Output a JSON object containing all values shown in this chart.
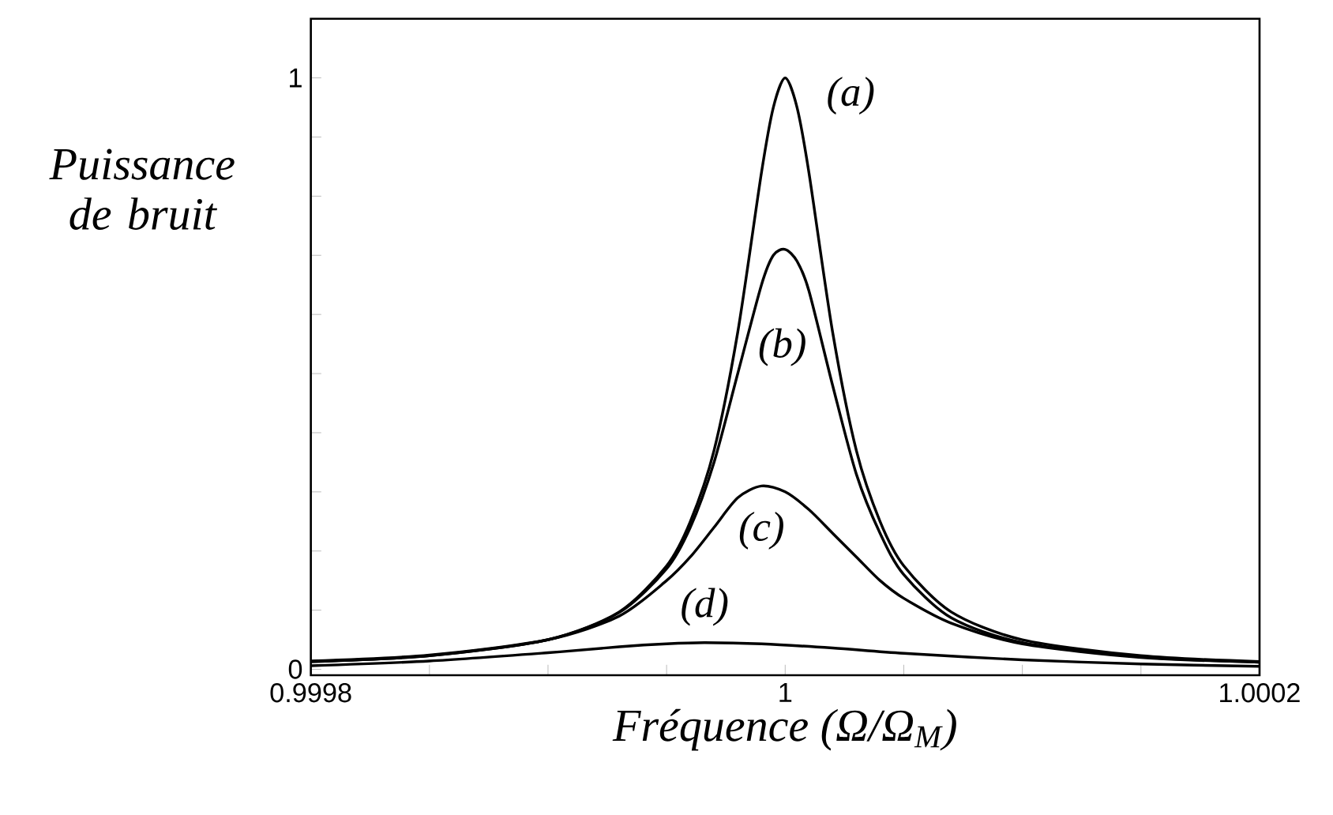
{
  "chart_data": {
    "type": "line",
    "xlabel": "Fréquence (Ω/Ω$_{M}$)",
    "ylabel": "Puissance de bruit",
    "xlim": [
      0.9998,
      1.0002
    ],
    "ylim": [
      -0.01,
      1.1
    ],
    "xticks": [
      0.9998,
      {
        "value": 0.99985,
        "label": null
      },
      {
        "value": 0.9999,
        "label": null
      },
      {
        "value": 0.99995,
        "label": null
      },
      1,
      {
        "value": 1.00005,
        "label": null
      },
      {
        "value": 1.0001,
        "label": null
      },
      {
        "value": 1.00015,
        "label": null
      },
      1.0002
    ],
    "yticks": [
      0,
      {
        "value": 0.1,
        "label": null
      },
      {
        "value": 0.2,
        "label": null
      },
      {
        "value": 0.3,
        "label": null
      },
      {
        "value": 0.4,
        "label": null
      },
      {
        "value": 0.5,
        "label": null
      },
      {
        "value": 0.6,
        "label": null
      },
      {
        "value": 0.7,
        "label": null
      },
      {
        "value": 0.8,
        "label": null
      },
      {
        "value": 0.9,
        "label": null
      },
      1
    ],
    "grid": false,
    "legend": false,
    "series": [
      {
        "name": "(a)",
        "color": "#000000",
        "x": [
          0.9998,
          0.99985,
          0.9999,
          0.99993,
          0.99995,
          0.99996,
          0.99997,
          0.99998,
          0.99999,
          0.999995,
          1,
          1.000005,
          1.00001,
          1.00002,
          1.00003,
          1.00004,
          1.00005,
          1.00007,
          1.0001,
          1.00015,
          1.0002
        ],
        "values": [
          0.013,
          0.023,
          0.05,
          0.097,
          0.175,
          0.25,
          0.37,
          0.57,
          0.84,
          0.95,
          1,
          0.95,
          0.84,
          0.57,
          0.37,
          0.25,
          0.175,
          0.097,
          0.05,
          0.023,
          0.013
        ]
      },
      {
        "name": "(b)",
        "color": "#000000",
        "x": [
          0.9998,
          0.99985,
          0.9999,
          0.99993,
          0.99995,
          0.99996,
          0.99997,
          0.99998,
          0.99999,
          0.999995,
          1,
          1.000005,
          1.00001,
          1.00002,
          1.00003,
          1.00004,
          1.00005,
          1.00007,
          1.0001,
          1.00015,
          1.0002
        ],
        "values": [
          0.013,
          0.023,
          0.05,
          0.096,
          0.17,
          0.24,
          0.35,
          0.5,
          0.65,
          0.7,
          0.71,
          0.69,
          0.64,
          0.48,
          0.33,
          0.23,
          0.16,
          0.087,
          0.045,
          0.021,
          0.012
        ]
      },
      {
        "name": "(c)",
        "color": "#000000",
        "x": [
          0.9998,
          0.99985,
          0.9999,
          0.99993,
          0.99995,
          0.99996,
          0.99997,
          0.99998,
          0.99999,
          1,
          1.00001,
          1.00002,
          1.00003,
          1.00004,
          1.00005,
          1.00007,
          1.0001,
          1.00015,
          1.0002
        ],
        "values": [
          0.014,
          0.024,
          0.05,
          0.09,
          0.15,
          0.19,
          0.24,
          0.29,
          0.31,
          0.3,
          0.27,
          0.23,
          0.19,
          0.15,
          0.12,
          0.078,
          0.043,
          0.02,
          0.012
        ]
      },
      {
        "name": "(d)",
        "color": "#000000",
        "x": [
          0.9998,
          0.99985,
          0.9999,
          0.99993,
          0.99995,
          0.999966,
          0.99999,
          1.00002,
          1.00005,
          1.0001,
          1.00015,
          1.0002
        ],
        "values": [
          0.006,
          0.014,
          0.028,
          0.038,
          0.043,
          0.045,
          0.043,
          0.036,
          0.027,
          0.016,
          0.009,
          0.005
        ]
      }
    ]
  }
}
